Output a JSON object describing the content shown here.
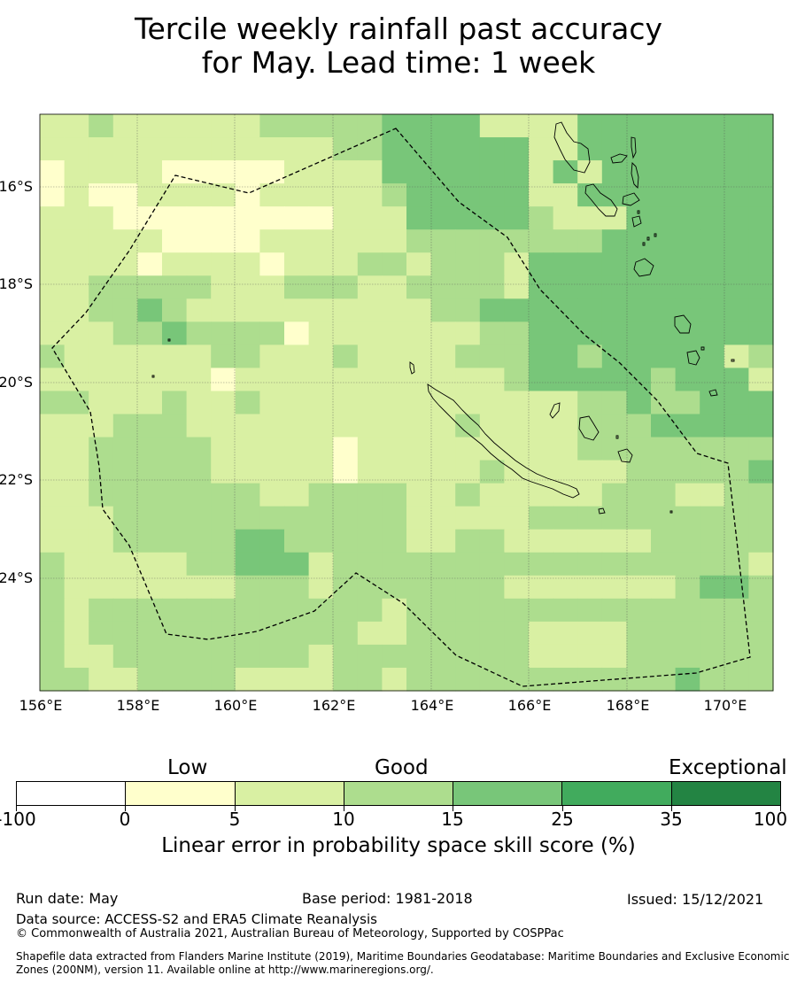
{
  "title_line1": "Tercile weekly rainfall past accuracy",
  "title_line2": "for May. Lead time: 1 week",
  "lon_labels": [
    "156°E",
    "158°E",
    "160°E",
    "162°E",
    "164°E",
    "166°E",
    "168°E",
    "170°E"
  ],
  "lat_labels": [
    "16°S",
    "18°S",
    "20°S",
    "22°S",
    "24°S"
  ],
  "colorbar": {
    "categories": [
      "Low",
      "Good",
      "Exceptional"
    ],
    "ticks": [
      "-100",
      "0",
      "5",
      "10",
      "15",
      "25",
      "35",
      "100"
    ],
    "colors": [
      "#ffffff",
      "#ffffcc",
      "#d9f0a3",
      "#addd8e",
      "#78c679",
      "#41ab5d",
      "#238443"
    ],
    "title": "Linear error in probability space skill score (%)"
  },
  "grid_colors": {
    "0": "#ffffcc",
    "1": "#d9f0a3",
    "2": "#addd8e",
    "3": "#78c679"
  },
  "skill_grid": [
    "112111111222223333111133333333",
    "111111111111223333331133333333",
    "011110000011113333331313333333",
    "010011110111112333331133333333",
    "111000000000111333332111333333",
    "111110000111111222222223333333",
    "111101111011122122213333333333",
    "112222211122211222213333333333",
    "112232111111111122333333333333",
    "111223222201111111223333333333",
    "211111122111211112223323333312",
    "111111101111111111123333323331",
    "221112112111111111111122322333",
    "111222111111111112111122233333",
    "112222211111011111111122222222",
    "112222211111011111211111222223",
    "112222222112222112111112221122",
    "111222222222222111112222222222",
    "111222223322222112211111122222",
    "211111223331222222222222222221",
    "211111112221222222211111112332",
    "212222222222221222222222222222",
    "212222222222211222221111222222",
    "211222222221222222221111222222",
    "221122221111221222222222223222"
  ],
  "footer": {
    "run_date": "Run date: May",
    "base_period": "Base period: 1981-2018",
    "issued": "Issued: 15/12/2021",
    "data_source": "Data source: ACCESS-S2 and ERA5 Climate Reanalysis",
    "copyright": "© Commonwealth of Australia 2021, Australian Bureau of Meteorology, Supported by COSPPac",
    "shapefile_line1": "Shapefile data extracted from Flanders Marine Institute (2019), Maritime Boundaries Geodatabase: Maritime Boundaries and Exclusive Economic",
    "shapefile_line2": "Zones (200NM), version 11. Available online at http://www.marineregions.org/."
  }
}
